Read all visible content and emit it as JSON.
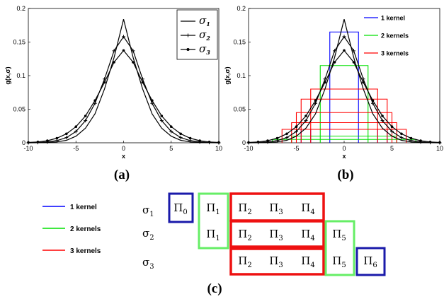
{
  "chart_data": [
    {
      "panel": "(a)",
      "type": "line",
      "xlabel": "x",
      "ylabel": "g(x,σ)",
      "xlim": [
        -10,
        10
      ],
      "ylim": [
        0,
        0.2
      ],
      "xticks": [
        "-10",
        "-5",
        "0",
        "5",
        "10"
      ],
      "yticks": [
        "0",
        "0.05",
        "0.1",
        "0.15",
        "0.2"
      ],
      "x": [
        -10,
        -9,
        -8,
        -7,
        -6,
        -5,
        -4,
        -3,
        -2,
        -1,
        0,
        1,
        2,
        3,
        4,
        5,
        6,
        7,
        8,
        9,
        10
      ],
      "series": [
        {
          "name": "σ1",
          "sub": "1",
          "marker": "none",
          "values": [
            0.0,
            0.0001,
            0.0004,
            0.0013,
            0.0037,
            0.0098,
            0.0218,
            0.0431,
            0.0802,
            0.127,
            0.184,
            0.127,
            0.0802,
            0.0431,
            0.0218,
            0.0098,
            0.0037,
            0.0013,
            0.0004,
            0.0001,
            0.0
          ]
        },
        {
          "name": "σ2",
          "sub": "2",
          "marker": "plus",
          "values": [
            0.0,
            0.0004,
            0.0012,
            0.0033,
            0.0077,
            0.0168,
            0.033,
            0.0587,
            0.095,
            0.137,
            0.158,
            0.137,
            0.095,
            0.0587,
            0.033,
            0.0168,
            0.0077,
            0.0033,
            0.0012,
            0.0004,
            0.0
          ]
        },
        {
          "name": "σ3",
          "sub": "3",
          "marker": "circle",
          "values": [
            0.0005,
            0.0013,
            0.0031,
            0.0068,
            0.0134,
            0.024,
            0.04,
            0.063,
            0.09,
            0.12,
            0.1375,
            0.12,
            0.09,
            0.063,
            0.04,
            0.024,
            0.0134,
            0.0068,
            0.0031,
            0.0013,
            0.0005
          ]
        }
      ],
      "legend": "top-right"
    },
    {
      "panel": "(b)",
      "type": "line",
      "xlabel": "x",
      "ylabel": "g(x,σ)",
      "xlim": [
        -10,
        10
      ],
      "ylim": [
        0,
        0.2
      ],
      "xticks": [
        "-10",
        "-5",
        "0",
        "5",
        "10"
      ],
      "yticks": [
        "0",
        "0.05",
        "0.1",
        "0.15",
        "0.2"
      ],
      "same_curves_as": "(a)",
      "kernel_boxes": [
        {
          "group": "1 kernel",
          "color": "#0000ff",
          "boxes": [
            {
              "x0": -1.5,
              "x1": 1.5,
              "h": 0.165
            },
            {
              "x0": -4.5,
              "x1": -3.5,
              "h": 0.02
            },
            {
              "x0": 3.5,
              "x1": 4.5,
              "h": 0.02
            }
          ]
        },
        {
          "group": "2 kernels",
          "color": "#00e000",
          "boxes": [
            {
              "x0": -2.5,
              "x1": 2.5,
              "h": 0.115
            },
            {
              "x0": -5.5,
              "x1": 5.5,
              "h": 0.01
            },
            {
              "x0": -7.5,
              "x1": 7.5,
              "h": 0.005
            }
          ]
        },
        {
          "group": "3 kernels",
          "color": "#ff0000",
          "boxes": [
            {
              "x0": -3.5,
              "x1": 3.5,
              "h": 0.08
            },
            {
              "x0": -4.5,
              "x1": 4.5,
              "h": 0.065
            },
            {
              "x0": -5,
              "x1": 5,
              "h": 0.045
            },
            {
              "x0": -5.5,
              "x1": 5.5,
              "h": 0.03
            },
            {
              "x0": -6.5,
              "x1": 6.5,
              "h": 0.02
            }
          ]
        }
      ],
      "legend": "top-right",
      "legend_entries": [
        "1 kernel",
        "2 kernels",
        "3 kernels"
      ]
    }
  ],
  "panel_labels": {
    "a": "(a)",
    "b": "(b)",
    "c": "(c)"
  },
  "diagram_c": {
    "legend": [
      {
        "label": "1 kernel",
        "color": "#0000ff"
      },
      {
        "label": "2 kernels",
        "color": "#00e000"
      },
      {
        "label": "3 kernels",
        "color": "#ff0000"
      }
    ],
    "rows": [
      {
        "sigma": "σ",
        "sub": "1"
      },
      {
        "sigma": "σ",
        "sub": "2"
      },
      {
        "sigma": "σ",
        "sub": "3"
      }
    ],
    "pi": "Π",
    "cells": [
      "0",
      "1",
      "2",
      "3",
      "4",
      "5",
      "6"
    ]
  }
}
